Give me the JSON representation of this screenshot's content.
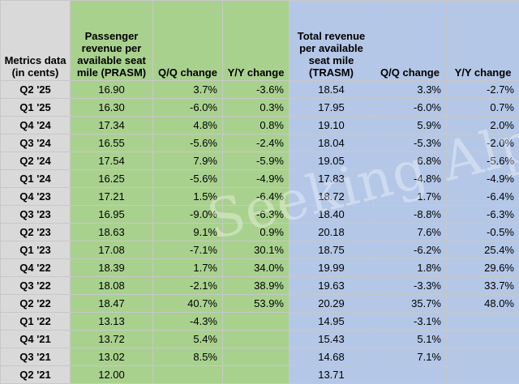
{
  "headers": {
    "metric": "Metrics data (in cents)",
    "prasm": "Passenger revenue per available seat mile (PRASM)",
    "prasm_qq": "Q/Q change",
    "prasm_yy": "Y/Y change",
    "trasm": "Total revenue per available seat mile (TRASM)",
    "trasm_qq": "Q/Q change",
    "trasm_yy": "Y/Y change"
  },
  "rows": [
    {
      "label": "Q2 '25",
      "prasm": "16.90",
      "prasm_qq": "3.7%",
      "prasm_yy": "-3.6%",
      "trasm": "18.54",
      "trasm_qq": "3.3%",
      "trasm_yy": "-2.7%"
    },
    {
      "label": "Q1 '25",
      "prasm": "16.30",
      "prasm_qq": "-6.0%",
      "prasm_yy": "0.3%",
      "trasm": "17.95",
      "trasm_qq": "-6.0%",
      "trasm_yy": "0.7%"
    },
    {
      "label": "Q4 '24",
      "prasm": "17.34",
      "prasm_qq": "4.8%",
      "prasm_yy": "0.8%",
      "trasm": "19.10",
      "trasm_qq": "5.9%",
      "trasm_yy": "2.0%"
    },
    {
      "label": "Q3 '24",
      "prasm": "16.55",
      "prasm_qq": "-5.6%",
      "prasm_yy": "-2.4%",
      "trasm": "18.04",
      "trasm_qq": "-5.3%",
      "trasm_yy": "-2.0%"
    },
    {
      "label": "Q2 '24",
      "prasm": "17.54",
      "prasm_qq": "7.9%",
      "prasm_yy": "-5.9%",
      "trasm": "19.05",
      "trasm_qq": "6.8%",
      "trasm_yy": "-5.6%"
    },
    {
      "label": "Q1 '24",
      "prasm": "16.25",
      "prasm_qq": "-5.6%",
      "prasm_yy": "-4.9%",
      "trasm": "17.83",
      "trasm_qq": "-4.8%",
      "trasm_yy": "-4.9%"
    },
    {
      "label": "Q4 '23",
      "prasm": "17.21",
      "prasm_qq": "1.5%",
      "prasm_yy": "-6.4%",
      "trasm": "18.72",
      "trasm_qq": "1.7%",
      "trasm_yy": "-6.4%"
    },
    {
      "label": "Q3 '23",
      "prasm": "16.95",
      "prasm_qq": "-9.0%",
      "prasm_yy": "-6.3%",
      "trasm": "18.40",
      "trasm_qq": "-8.8%",
      "trasm_yy": "-6.3%"
    },
    {
      "label": "Q2 '23",
      "prasm": "18.63",
      "prasm_qq": "9.1%",
      "prasm_yy": "0.9%",
      "trasm": "20.18",
      "trasm_qq": "7.6%",
      "trasm_yy": "-0.5%"
    },
    {
      "label": "Q1 '23",
      "prasm": "17.08",
      "prasm_qq": "-7.1%",
      "prasm_yy": "30.1%",
      "trasm": "18.75",
      "trasm_qq": "-6.2%",
      "trasm_yy": "25.4%"
    },
    {
      "label": "Q4 '22",
      "prasm": "18.39",
      "prasm_qq": "1.7%",
      "prasm_yy": "34.0%",
      "trasm": "19.99",
      "trasm_qq": "1.8%",
      "trasm_yy": "29.6%"
    },
    {
      "label": "Q3 '22",
      "prasm": "18.08",
      "prasm_qq": "-2.1%",
      "prasm_yy": "38.9%",
      "trasm": "19.63",
      "trasm_qq": "-3.3%",
      "trasm_yy": "33.7%"
    },
    {
      "label": "Q2 '22",
      "prasm": "18.47",
      "prasm_qq": "40.7%",
      "prasm_yy": "53.9%",
      "trasm": "20.29",
      "trasm_qq": "35.7%",
      "trasm_yy": "48.0%"
    },
    {
      "label": "Q1 '22",
      "prasm": "13.13",
      "prasm_qq": "-4.3%",
      "prasm_yy": "",
      "trasm": "14.95",
      "trasm_qq": "-3.1%",
      "trasm_yy": ""
    },
    {
      "label": "Q4 '21",
      "prasm": "13.72",
      "prasm_qq": "5.4%",
      "prasm_yy": "",
      "trasm": "15.43",
      "trasm_qq": "5.1%",
      "trasm_yy": ""
    },
    {
      "label": "Q3 '21",
      "prasm": "13.02",
      "prasm_qq": "8.5%",
      "prasm_yy": "",
      "trasm": "14.68",
      "trasm_qq": "7.1%",
      "trasm_yy": ""
    },
    {
      "label": "Q2 '21",
      "prasm": "12.00",
      "prasm_qq": "",
      "prasm_yy": "",
      "trasm": "13.71",
      "trasm_qq": "",
      "trasm_yy": ""
    }
  ],
  "watermark": "Seeking Alpha",
  "colors": {
    "green": "#a9d18e",
    "blue": "#b4c7e7",
    "gray": "#d9d9d9"
  }
}
